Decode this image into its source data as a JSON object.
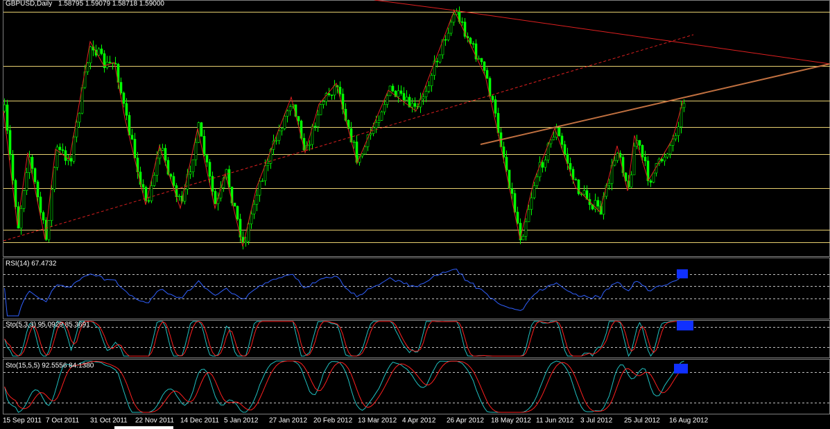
{
  "window": {
    "symbol": "GBPUSD,Daily",
    "ohlc": "1.58795 1.59079 1.58718 1.59000"
  },
  "indicators": [
    {
      "label": "RSI(14) 67.4732"
    },
    {
      "label": "Sto(5,3,3) 95.0929 85.3691"
    },
    {
      "label": "Sto(15,5,5) 92.5556 84.1380"
    }
  ],
  "dates": [
    "15 Sep 2011",
    "7 Oct 2011",
    "31 Oct 2011",
    "22 Nov 2011",
    "14 Dec 2011",
    "5 Jan 2012",
    "27 Jan 2012",
    "20 Feb 2012",
    "13 Mar 2012",
    "4 Apr 2012",
    "26 Apr 2012",
    "18 May 2012",
    "11 Jun 2012",
    "3 Jul 2012",
    "25 Jul 2012",
    "16 Aug 2012"
  ]
}
